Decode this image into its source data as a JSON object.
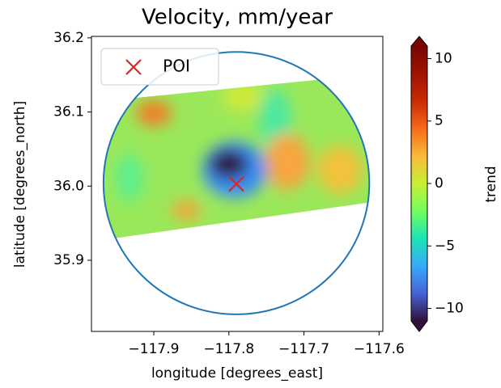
{
  "chart_data": {
    "type": "scatter",
    "title": "Velocity, mm/year",
    "x_label": "longitude [degrees_east]",
    "y_label": "latitude [degrees_north]",
    "xlim": [
      -117.983,
      -117.595
    ],
    "ylim": [
      35.804,
      36.202
    ],
    "xticks": [
      {
        "value": -117.9,
        "label": "−117.9"
      },
      {
        "value": -117.8,
        "label": "−117.8"
      },
      {
        "value": -117.7,
        "label": "−117.7"
      },
      {
        "value": -117.6,
        "label": "−117.6"
      }
    ],
    "yticks": [
      35.9,
      {
        "value": 36.0,
        "label": "36.0"
      },
      36.1,
      36.2
    ],
    "series": [
      {
        "name": "POI",
        "color": "#d62728",
        "marker": "x",
        "x": [
          -117.79
        ],
        "y": [
          36.003
        ]
      }
    ],
    "circle": {
      "color": "#1f77b4",
      "center_x": -117.79,
      "center_y": 36.004,
      "radius": 0.177
    },
    "legend": "upper left",
    "colorbar": {
      "label": "trend",
      "cmap": "turbo",
      "clim": [
        -11,
        11
      ],
      "ticks": [
        {
          "value": -10,
          "label": "−10"
        },
        {
          "value": -5,
          "label": "−5"
        },
        0,
        5,
        10
      ]
    }
  }
}
